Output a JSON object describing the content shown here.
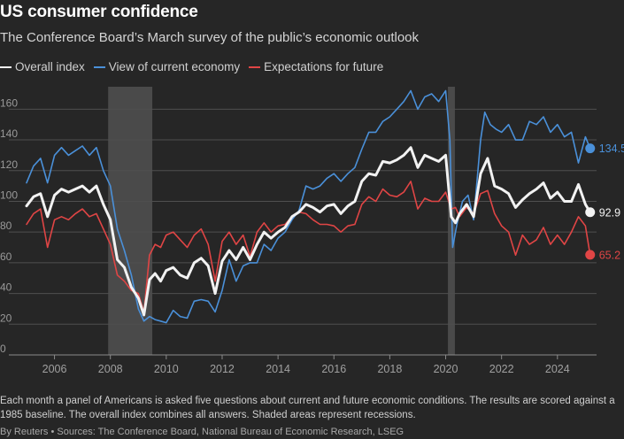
{
  "header": {
    "title": "US consumer confidence",
    "subtitle": "The Conference Board’s March survey of the public’s economic outlook"
  },
  "legend": [
    {
      "label": "Overall index",
      "color": "#f2f2f2"
    },
    {
      "label": "View of current economy",
      "color": "#4a90d9"
    },
    {
      "label": "Expectations for future",
      "color": "#e04545"
    }
  ],
  "note": "Each month a panel of Americans is asked five questions about current and future economic conditions. The results are scored against a 1985 baseline. The overall index combines all answers. Shaded areas represent recessions.",
  "footer": "By Reuters • Sources: The Conference Board, National Bureau of Economic Research, LSEG",
  "chart_data": {
    "type": "line",
    "title": "US consumer confidence",
    "xlabel": "",
    "ylabel": "",
    "xlim": [
      2005.0,
      2025.4
    ],
    "ylim": [
      0,
      170
    ],
    "y_ticks": [
      0,
      20,
      40,
      60,
      80,
      100,
      120,
      140,
      160
    ],
    "x_ticks": [
      2006,
      2008,
      2010,
      2012,
      2014,
      2016,
      2018,
      2020,
      2022,
      2024
    ],
    "grid": "horizontal",
    "legend_position": "top-left",
    "recessions": [
      [
        2007.92,
        2009.5
      ],
      [
        2020.08,
        2020.33
      ]
    ],
    "series": [
      {
        "name": "Overall index",
        "color": "#f2f2f2",
        "end_label": "92.9",
        "points": [
          [
            2005.0,
            97
          ],
          [
            2005.25,
            103
          ],
          [
            2005.5,
            105
          ],
          [
            2005.75,
            90
          ],
          [
            2006.0,
            104
          ],
          [
            2006.25,
            108
          ],
          [
            2006.5,
            106
          ],
          [
            2006.75,
            108
          ],
          [
            2007.0,
            110
          ],
          [
            2007.25,
            106
          ],
          [
            2007.5,
            110
          ],
          [
            2007.75,
            98
          ],
          [
            2008.0,
            88
          ],
          [
            2008.25,
            62
          ],
          [
            2008.5,
            57
          ],
          [
            2008.75,
            44
          ],
          [
            2009.0,
            37
          ],
          [
            2009.2,
            26
          ],
          [
            2009.4,
            49
          ],
          [
            2009.6,
            53
          ],
          [
            2009.8,
            48
          ],
          [
            2010.0,
            55
          ],
          [
            2010.25,
            57
          ],
          [
            2010.5,
            52
          ],
          [
            2010.75,
            50
          ],
          [
            2011.0,
            60
          ],
          [
            2011.25,
            63
          ],
          [
            2011.5,
            58
          ],
          [
            2011.75,
            40
          ],
          [
            2012.0,
            61
          ],
          [
            2012.25,
            68
          ],
          [
            2012.5,
            62
          ],
          [
            2012.75,
            70
          ],
          [
            2013.0,
            62
          ],
          [
            2013.25,
            72
          ],
          [
            2013.5,
            80
          ],
          [
            2013.75,
            76
          ],
          [
            2014.0,
            80
          ],
          [
            2014.25,
            83
          ],
          [
            2014.5,
            90
          ],
          [
            2014.75,
            93
          ],
          [
            2015.0,
            98
          ],
          [
            2015.25,
            96
          ],
          [
            2015.5,
            93
          ],
          [
            2015.75,
            97
          ],
          [
            2016.0,
            98
          ],
          [
            2016.25,
            92
          ],
          [
            2016.5,
            97
          ],
          [
            2016.75,
            100
          ],
          [
            2017.0,
            113
          ],
          [
            2017.25,
            118
          ],
          [
            2017.5,
            117
          ],
          [
            2017.75,
            126
          ],
          [
            2018.0,
            125
          ],
          [
            2018.25,
            127
          ],
          [
            2018.5,
            130
          ],
          [
            2018.75,
            135
          ],
          [
            2019.0,
            122
          ],
          [
            2019.25,
            130
          ],
          [
            2019.5,
            128
          ],
          [
            2019.75,
            126
          ],
          [
            2020.0,
            130
          ],
          [
            2020.2,
            90
          ],
          [
            2020.35,
            86
          ],
          [
            2020.5,
            92
          ],
          [
            2020.75,
            98
          ],
          [
            2021.0,
            90
          ],
          [
            2021.25,
            118
          ],
          [
            2021.5,
            128
          ],
          [
            2021.75,
            110
          ],
          [
            2022.0,
            108
          ],
          [
            2022.25,
            105
          ],
          [
            2022.5,
            96
          ],
          [
            2022.75,
            101
          ],
          [
            2023.0,
            105
          ],
          [
            2023.25,
            108
          ],
          [
            2023.5,
            112
          ],
          [
            2023.75,
            102
          ],
          [
            2024.0,
            106
          ],
          [
            2024.25,
            100
          ],
          [
            2024.5,
            100
          ],
          [
            2024.75,
            111
          ],
          [
            2025.0,
            98
          ],
          [
            2025.17,
            92.9
          ]
        ]
      },
      {
        "name": "View of current economy",
        "color": "#4a90d9",
        "end_label": "134.5",
        "points": [
          [
            2005.0,
            112
          ],
          [
            2005.25,
            123
          ],
          [
            2005.5,
            128
          ],
          [
            2005.75,
            112
          ],
          [
            2006.0,
            130
          ],
          [
            2006.25,
            135
          ],
          [
            2006.5,
            130
          ],
          [
            2006.75,
            133
          ],
          [
            2007.0,
            136
          ],
          [
            2007.25,
            130
          ],
          [
            2007.5,
            135
          ],
          [
            2007.75,
            120
          ],
          [
            2008.0,
            110
          ],
          [
            2008.25,
            82
          ],
          [
            2008.5,
            68
          ],
          [
            2008.75,
            52
          ],
          [
            2009.0,
            30
          ],
          [
            2009.2,
            22
          ],
          [
            2009.4,
            25
          ],
          [
            2009.6,
            23
          ],
          [
            2009.8,
            22
          ],
          [
            2010.0,
            21
          ],
          [
            2010.25,
            29
          ],
          [
            2010.5,
            25
          ],
          [
            2010.75,
            24
          ],
          [
            2011.0,
            35
          ],
          [
            2011.25,
            36
          ],
          [
            2011.5,
            35
          ],
          [
            2011.75,
            28
          ],
          [
            2012.0,
            42
          ],
          [
            2012.25,
            62
          ],
          [
            2012.5,
            48
          ],
          [
            2012.75,
            58
          ],
          [
            2013.0,
            60
          ],
          [
            2013.25,
            60
          ],
          [
            2013.5,
            72
          ],
          [
            2013.75,
            68
          ],
          [
            2014.0,
            76
          ],
          [
            2014.25,
            80
          ],
          [
            2014.5,
            88
          ],
          [
            2014.75,
            94
          ],
          [
            2015.0,
            110
          ],
          [
            2015.25,
            108
          ],
          [
            2015.5,
            110
          ],
          [
            2015.75,
            115
          ],
          [
            2016.0,
            118
          ],
          [
            2016.25,
            113
          ],
          [
            2016.5,
            118
          ],
          [
            2016.75,
            122
          ],
          [
            2017.0,
            134
          ],
          [
            2017.25,
            145
          ],
          [
            2017.5,
            145
          ],
          [
            2017.75,
            152
          ],
          [
            2018.0,
            155
          ],
          [
            2018.25,
            160
          ],
          [
            2018.5,
            165
          ],
          [
            2018.75,
            172
          ],
          [
            2019.0,
            160
          ],
          [
            2019.25,
            168
          ],
          [
            2019.5,
            170
          ],
          [
            2019.75,
            165
          ],
          [
            2020.0,
            172
          ],
          [
            2020.15,
            140
          ],
          [
            2020.25,
            70
          ],
          [
            2020.4,
            85
          ],
          [
            2020.6,
            100
          ],
          [
            2020.8,
            104
          ],
          [
            2021.0,
            88
          ],
          [
            2021.25,
            140
          ],
          [
            2021.4,
            158
          ],
          [
            2021.6,
            150
          ],
          [
            2021.8,
            147
          ],
          [
            2022.0,
            145
          ],
          [
            2022.25,
            150
          ],
          [
            2022.5,
            140
          ],
          [
            2022.75,
            140
          ],
          [
            2023.0,
            152
          ],
          [
            2023.25,
            150
          ],
          [
            2023.5,
            155
          ],
          [
            2023.75,
            145
          ],
          [
            2024.0,
            150
          ],
          [
            2024.25,
            142
          ],
          [
            2024.5,
            145
          ],
          [
            2024.75,
            125
          ],
          [
            2025.0,
            142
          ],
          [
            2025.17,
            134.5
          ]
        ]
      },
      {
        "name": "Expectations for future",
        "color": "#e04545",
        "end_label": "65.2",
        "points": [
          [
            2005.0,
            85
          ],
          [
            2005.25,
            92
          ],
          [
            2005.5,
            95
          ],
          [
            2005.75,
            70
          ],
          [
            2006.0,
            88
          ],
          [
            2006.25,
            90
          ],
          [
            2006.5,
            88
          ],
          [
            2006.75,
            92
          ],
          [
            2007.0,
            95
          ],
          [
            2007.25,
            90
          ],
          [
            2007.5,
            92
          ],
          [
            2007.75,
            82
          ],
          [
            2008.0,
            72
          ],
          [
            2008.25,
            52
          ],
          [
            2008.5,
            48
          ],
          [
            2008.75,
            42
          ],
          [
            2009.0,
            40
          ],
          [
            2009.2,
            28
          ],
          [
            2009.4,
            65
          ],
          [
            2009.6,
            72
          ],
          [
            2009.8,
            70
          ],
          [
            2010.0,
            78
          ],
          [
            2010.25,
            80
          ],
          [
            2010.5,
            75
          ],
          [
            2010.75,
            70
          ],
          [
            2011.0,
            78
          ],
          [
            2011.25,
            82
          ],
          [
            2011.5,
            72
          ],
          [
            2011.75,
            48
          ],
          [
            2012.0,
            74
          ],
          [
            2012.25,
            80
          ],
          [
            2012.5,
            72
          ],
          [
            2012.75,
            78
          ],
          [
            2013.0,
            64
          ],
          [
            2013.25,
            80
          ],
          [
            2013.5,
            86
          ],
          [
            2013.75,
            80
          ],
          [
            2014.0,
            84
          ],
          [
            2014.25,
            85
          ],
          [
            2014.5,
            90
          ],
          [
            2014.75,
            93
          ],
          [
            2015.0,
            92
          ],
          [
            2015.25,
            88
          ],
          [
            2015.5,
            85
          ],
          [
            2015.75,
            85
          ],
          [
            2016.0,
            84
          ],
          [
            2016.25,
            80
          ],
          [
            2016.5,
            84
          ],
          [
            2016.75,
            85
          ],
          [
            2017.0,
            98
          ],
          [
            2017.25,
            103
          ],
          [
            2017.5,
            100
          ],
          [
            2017.75,
            108
          ],
          [
            2018.0,
            104
          ],
          [
            2018.25,
            103
          ],
          [
            2018.5,
            106
          ],
          [
            2018.75,
            113
          ],
          [
            2019.0,
            95
          ],
          [
            2019.25,
            102
          ],
          [
            2019.5,
            100
          ],
          [
            2019.75,
            100
          ],
          [
            2020.0,
            106
          ],
          [
            2020.2,
            95
          ],
          [
            2020.35,
            96
          ],
          [
            2020.5,
            90
          ],
          [
            2020.75,
            96
          ],
          [
            2021.0,
            92
          ],
          [
            2021.25,
            105
          ],
          [
            2021.5,
            107
          ],
          [
            2021.75,
            92
          ],
          [
            2022.0,
            84
          ],
          [
            2022.25,
            80
          ],
          [
            2022.5,
            65
          ],
          [
            2022.75,
            78
          ],
          [
            2023.0,
            72
          ],
          [
            2023.25,
            75
          ],
          [
            2023.5,
            83
          ],
          [
            2023.75,
            72
          ],
          [
            2024.0,
            78
          ],
          [
            2024.25,
            72
          ],
          [
            2024.5,
            80
          ],
          [
            2024.75,
            90
          ],
          [
            2025.0,
            84
          ],
          [
            2025.17,
            65.2
          ]
        ]
      }
    ]
  }
}
